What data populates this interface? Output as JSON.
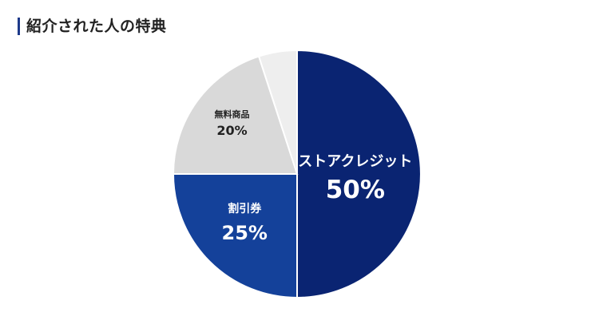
{
  "header": {
    "title": "紹介された人の特典",
    "accent_color": "#1e3a8a"
  },
  "chart_data": {
    "type": "pie",
    "title": "紹介された人の特典",
    "start_angle_deg": 0,
    "direction": "clockwise",
    "slices": [
      {
        "label": "ストアクレジット",
        "value": 50,
        "value_label": "50%",
        "color": "#0a2472",
        "text_color": "#ffffff"
      },
      {
        "label": "割引券",
        "value": 25,
        "value_label": "25%",
        "color": "#14419a",
        "text_color": "#ffffff"
      },
      {
        "label": "無料商品",
        "value": 20,
        "value_label": "20%",
        "color": "#d9d9d9",
        "text_color": "#222222"
      },
      {
        "label": "",
        "value": 5,
        "value_label": "",
        "color": "#eeeeee",
        "text_color": "#222222"
      }
    ]
  }
}
